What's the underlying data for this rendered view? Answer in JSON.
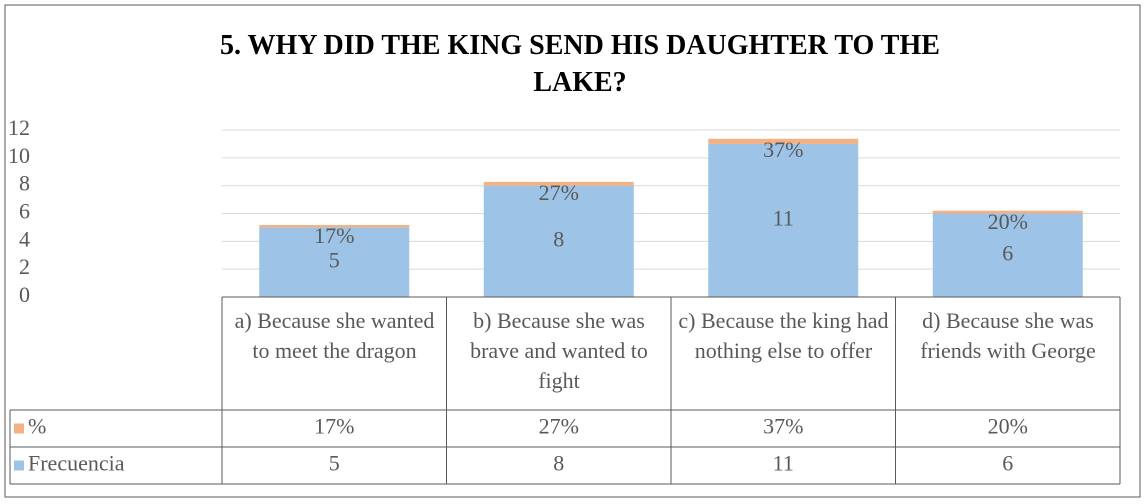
{
  "chart_data": {
    "type": "bar",
    "stacked": true,
    "title": "5. WHY DID THE KING SEND HIS DAUGHTER TO THE LAKE?",
    "categories": [
      "a) Because she wanted to meet the dragon",
      "b) Because she was brave and wanted to fight",
      "c) Because the king had nothing else to offer",
      "d) Because she was friends with George"
    ],
    "series": [
      {
        "name": "%",
        "color": "#f4b183",
        "values": [
          0.17,
          0.27,
          0.37,
          0.2
        ],
        "value_labels": [
          "17%",
          "27%",
          "37%",
          "20%"
        ]
      },
      {
        "name": "Frecuencia",
        "color": "#9dc3e6",
        "values": [
          5,
          8,
          11,
          6
        ]
      }
    ],
    "ylim": [
      0,
      12
    ],
    "yticks": [
      0,
      2,
      4,
      6,
      8,
      10,
      12
    ],
    "grid": true,
    "data_table": true
  }
}
